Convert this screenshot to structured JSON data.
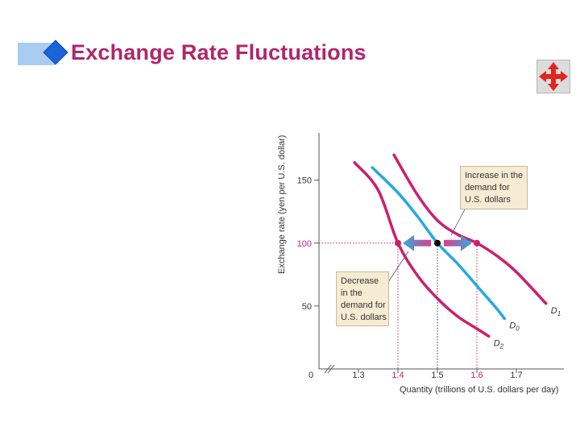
{
  "slide": {
    "title": "Exchange Rate Fluctuations",
    "nav_icon": "four-way-arrows-icon"
  },
  "colors": {
    "title": "#b0266a",
    "magenta": "#cc1f6e",
    "cyan": "#27a9de",
    "annotation_bg": "#f6ecd3"
  },
  "chart_data": {
    "type": "line",
    "ylabel": "Exchange rate (yen per U.S. dollar)",
    "xlabel": "Quantity (trillions of U.S. dollars per day)",
    "xlim": [
      1.2,
      1.8
    ],
    "ylim": [
      0,
      180
    ],
    "axis_break": true,
    "x_ticks": [
      "0",
      "1.3",
      "1.4",
      "1.5",
      "1.6",
      "1.7"
    ],
    "y_ticks": [
      "50",
      "100",
      "150"
    ],
    "series": [
      {
        "name": "D1",
        "color": "#cc1f6e",
        "points": [
          [
            1.39,
            170
          ],
          [
            1.45,
            138
          ],
          [
            1.5,
            118
          ],
          [
            1.55,
            107
          ],
          [
            1.6,
            100
          ],
          [
            1.65,
            90
          ],
          [
            1.7,
            77
          ],
          [
            1.775,
            52
          ]
        ]
      },
      {
        "name": "D0",
        "color": "#27a9de",
        "points": [
          [
            1.335,
            160
          ],
          [
            1.4,
            140
          ],
          [
            1.45,
            121
          ],
          [
            1.5,
            100
          ],
          [
            1.55,
            84
          ],
          [
            1.6,
            66
          ],
          [
            1.65,
            48
          ],
          [
            1.67,
            40
          ]
        ]
      },
      {
        "name": "D2",
        "color": "#cc1f6e",
        "points": [
          [
            1.29,
            164
          ],
          [
            1.35,
            142
          ],
          [
            1.4,
            100
          ],
          [
            1.45,
            74
          ],
          [
            1.5,
            56
          ],
          [
            1.55,
            42
          ],
          [
            1.6,
            32
          ],
          [
            1.63,
            26
          ]
        ]
      }
    ],
    "points": [
      {
        "x": 1.4,
        "y": 100,
        "color": "#cc1f6e"
      },
      {
        "x": 1.5,
        "y": 100,
        "color": "#000000"
      },
      {
        "x": 1.6,
        "y": 100,
        "color": "#cc1f6e"
      }
    ],
    "highlight_ticks": {
      "x": [
        "1.4",
        "1.6"
      ],
      "y": [
        "100"
      ]
    },
    "annotations": [
      {
        "lines": [
          "Increase in the",
          "demand for",
          "U.S. dollars"
        ]
      },
      {
        "lines": [
          "Decrease",
          "in the",
          "demand for",
          "U.S. dollars"
        ]
      }
    ]
  }
}
